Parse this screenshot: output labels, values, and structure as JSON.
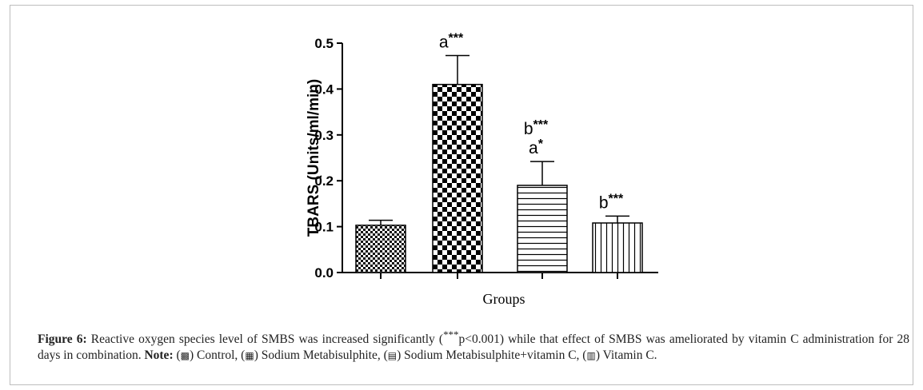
{
  "chart_data": {
    "type": "bar",
    "categories": [
      "Control",
      "Sodium Metabisulphite",
      "Sodium Metabisulphite+vitamin C",
      "Vitamin C"
    ],
    "values": [
      0.103,
      0.41,
      0.19,
      0.108
    ],
    "errors": [
      0.011,
      0.063,
      0.052,
      0.015
    ],
    "annotations": [
      [],
      [
        "a***"
      ],
      [
        "b***",
        "a*"
      ],
      [
        "b***"
      ]
    ],
    "patterns": [
      "fine-check",
      "coarse-check",
      "horizontal-lines",
      "vertical-lines"
    ],
    "xlabel": "Groups",
    "ylabel": "TBARS (Units/ml/min)",
    "ylim": [
      0,
      0.5
    ],
    "yticks": [
      "0.0",
      "0.1",
      "0.2",
      "0.3",
      "0.4",
      "0.5"
    ],
    "grid": false
  },
  "caption": {
    "label": "Figure 6:",
    "text1": " Reactive oxygen species level of SMBS was increased significantly (",
    "sig": "***",
    "text2": "p<0.001) while that effect of SMBS was ameliorated by vitamin C administration for 28 days in combination. ",
    "note_label": "Note:",
    "legend": [
      {
        "glyph": "▩",
        "label": "Control"
      },
      {
        "glyph": "▦",
        "label": "Sodium Metabisulphite"
      },
      {
        "glyph": "▤",
        "label": "Sodium Metabisulphite+vitamin C"
      },
      {
        "glyph": "▥",
        "label": "Vitamin C."
      }
    ]
  }
}
